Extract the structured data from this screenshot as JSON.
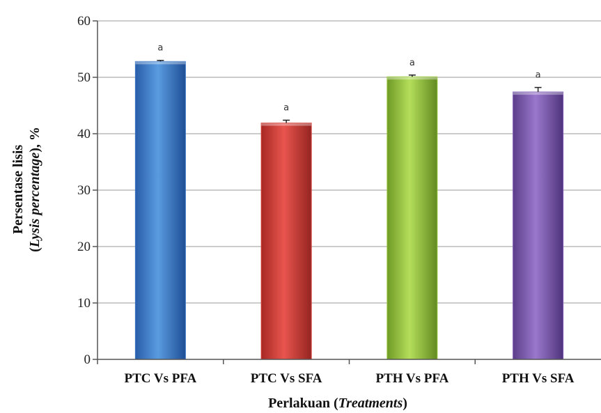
{
  "chart_data": {
    "type": "bar",
    "title": "",
    "categories": [
      "PTC Vs PFA",
      "PTC Vs SFA",
      "PTH Vs PFA",
      "PTH Vs SFA"
    ],
    "values": [
      52.8,
      41.9,
      50.1,
      47.4
    ],
    "error": [
      0.2,
      0.5,
      0.3,
      0.8
    ],
    "significance": [
      "a",
      "a",
      "a",
      "a"
    ],
    "colors": [
      "#3a78c8",
      "#d23c36",
      "#96c83a",
      "#7b58b0"
    ],
    "ylim": [
      0,
      60
    ],
    "yticks": [
      0,
      10,
      20,
      30,
      40,
      50,
      60
    ],
    "grid": true,
    "xlabel": {
      "main": "Perlakuan (",
      "italic": "Treatments",
      "end": ")"
    },
    "ylabel": {
      "line1": "Persentase lisis",
      "line2_open": "(",
      "line2_italic": "Lysis percentage",
      "line2_end": "), %"
    }
  }
}
